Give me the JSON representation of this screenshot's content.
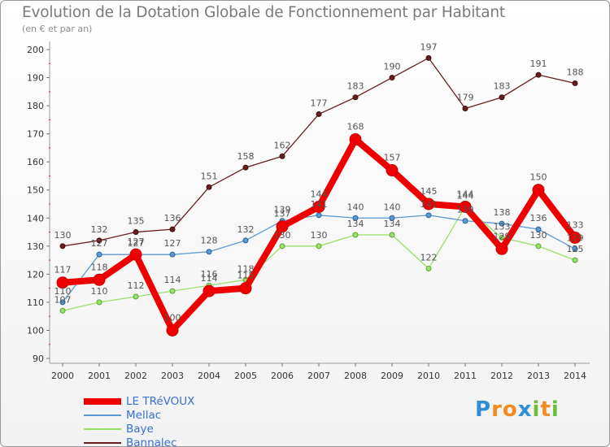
{
  "chart_data": {
    "type": "line",
    "title": "Evolution de la Dotation Globale de Fonctionnement par Habitant",
    "subtitle": "(en € et par an)",
    "xlabel": "",
    "ylabel": "",
    "ylim": [
      90,
      200
    ],
    "yticks": [
      90,
      100,
      110,
      120,
      130,
      140,
      150,
      160,
      170,
      180,
      190,
      200
    ],
    "categories": [
      "2000",
      "2001",
      "2002",
      "2003",
      "2004",
      "2005",
      "2006",
      "2007",
      "2008",
      "2009",
      "2010",
      "2011",
      "2012",
      "2013",
      "2014"
    ],
    "grid": false,
    "legend_position": "bottom-left",
    "series": [
      {
        "name": "LE TRéVOUX",
        "color": "#ee0000",
        "values": [
          117,
          118,
          127,
          100,
          114,
          115,
          137,
          144,
          168,
          157,
          145,
          144,
          129,
          150,
          133
        ]
      },
      {
        "name": "Mellac",
        "color": "#5b9bd5",
        "values": [
          110,
          127,
          127,
          127,
          128,
          132,
          139,
          141,
          140,
          140,
          141,
          139,
          138,
          136,
          129
        ]
      },
      {
        "name": "Baye",
        "color": "#99e066",
        "values": [
          107,
          110,
          112,
          114,
          116,
          118,
          130,
          130,
          134,
          134,
          122,
          144,
          133,
          130,
          125
        ]
      },
      {
        "name": "Bannalec",
        "color": "#6b1c1c",
        "values": [
          130,
          132,
          135,
          136,
          151,
          158,
          162,
          177,
          183,
          190,
          197,
          179,
          183,
          191,
          188
        ]
      }
    ]
  },
  "brand": {
    "text": "Proxiti"
  }
}
